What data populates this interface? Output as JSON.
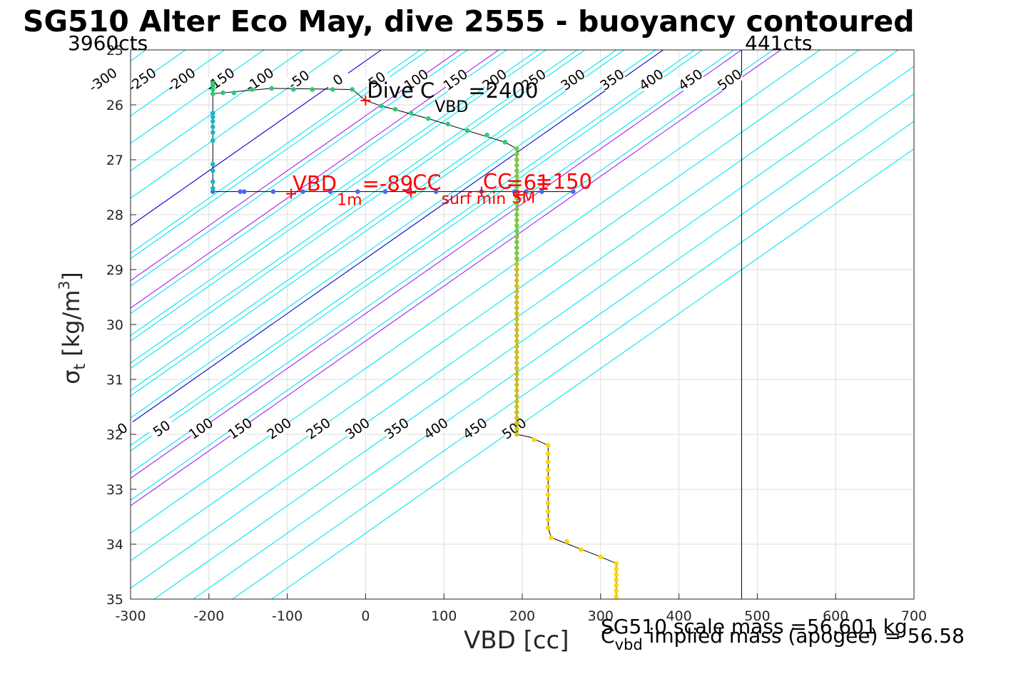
{
  "title": "SG510 Alter Eco May, dive 2555 - buoyancy contoured",
  "counts": {
    "left": "3960cts",
    "right": "441cts"
  },
  "footer": {
    "scale_mass": "SG510 scale mass =56.601 kg",
    "implied_symbol": "C",
    "implied_sub": "vbd",
    "implied_rest": " implied mass (apogee) = 56.58"
  },
  "chart_data": {
    "type": "scatter",
    "title": "SG510 Alter Eco May, dive 2555 - buoyancy contoured",
    "xlabel": "VBD [cc]",
    "ylabel": {
      "sym": "σ",
      "sub": "t",
      "unit": " [kg/m",
      "sup": "3",
      "close": "]"
    },
    "xlim": [
      -300,
      700
    ],
    "ylim": [
      25,
      35
    ],
    "y_reversed": true,
    "grid": true,
    "x_ticks": [
      -300,
      -200,
      -100,
      0,
      100,
      200,
      300,
      400,
      500,
      600,
      700
    ],
    "y_ticks": [
      25,
      26,
      27,
      28,
      29,
      30,
      31,
      32,
      33,
      34,
      35
    ],
    "vertical_line_x": 480,
    "contours": {
      "slope_cc_per_sigma": -100,
      "levels": [
        -300,
        -250,
        -200,
        -150,
        -100,
        -50,
        0,
        50,
        100,
        150,
        200,
        250,
        300,
        350,
        400,
        450,
        500
      ],
      "colors": {
        "default": "#00e5ee",
        "zero": "#0000cc",
        "highlight": "#a020f0"
      },
      "highlight_levels": [
        100,
        150
      ],
      "upper_family": {
        "anchor_x": 0,
        "anchor_y": 25.2
      },
      "lower_family": {
        "anchor_x": -300,
        "anchor_y": 31.8
      },
      "upper_labels": [
        {
          "level": -300,
          "text": "-300"
        },
        {
          "level": -250,
          "text": "-250"
        },
        {
          "level": -200,
          "text": "-200"
        },
        {
          "level": -150,
          "text": "-150"
        },
        {
          "level": -100,
          "text": "-100"
        },
        {
          "level": -50,
          "text": "-50"
        },
        {
          "level": 0,
          "text": "0"
        },
        {
          "level": 50,
          "text": "50"
        },
        {
          "level": 100,
          "text": "100"
        },
        {
          "level": 150,
          "text": "150"
        },
        {
          "level": 200,
          "text": "200"
        },
        {
          "level": 250,
          "text": "250"
        },
        {
          "level": 300,
          "text": "300"
        },
        {
          "level": 350,
          "text": "350"
        },
        {
          "level": 400,
          "text": "400"
        },
        {
          "level": 450,
          "text": "450"
        },
        {
          "level": 500,
          "text": "500"
        }
      ],
      "lower_labels": [
        {
          "level": 0,
          "text": "0"
        },
        {
          "level": 50,
          "text": "50"
        },
        {
          "level": 100,
          "text": "100"
        },
        {
          "level": 150,
          "text": "150"
        },
        {
          "level": 200,
          "text": "200"
        },
        {
          "level": 250,
          "text": "250"
        },
        {
          "level": 300,
          "text": "300"
        },
        {
          "level": 350,
          "text": "350"
        },
        {
          "level": 400,
          "text": "400"
        },
        {
          "level": 450,
          "text": "450"
        },
        {
          "level": 500,
          "text": "500"
        }
      ]
    },
    "series": [
      {
        "color": "#4169ff",
        "points": [
          [
            265,
            27.58
          ],
          [
            225,
            27.58
          ],
          [
            205,
            27.58
          ],
          [
            190,
            27.58
          ],
          [
            148,
            27.58
          ],
          [
            90,
            27.58
          ],
          [
            55,
            27.58
          ],
          [
            25,
            27.58
          ],
          [
            -10,
            27.58
          ],
          [
            -45,
            27.58
          ],
          [
            -80,
            27.58
          ],
          [
            -118,
            27.58
          ],
          [
            -155,
            27.58
          ],
          [
            -160,
            27.58
          ],
          [
            -195,
            27.58
          ]
        ]
      },
      {
        "color": "#1ab8c4",
        "points": [
          [
            -195,
            27.52
          ],
          [
            -195,
            27.4
          ],
          [
            -195,
            27.2
          ],
          [
            -195,
            27.08
          ],
          [
            -195,
            26.65
          ],
          [
            -195,
            26.5
          ],
          [
            -195,
            26.4
          ],
          [
            -195,
            26.3
          ],
          [
            -195,
            26.22
          ],
          [
            -195,
            26.15
          ]
        ]
      },
      {
        "color": "#2ec87a",
        "points": [
          [
            -195,
            25.8
          ],
          [
            -195,
            25.72
          ],
          [
            -195,
            25.65
          ],
          [
            -195,
            25.6
          ],
          [
            -182,
            25.78
          ],
          [
            -168,
            25.78
          ],
          [
            -145,
            25.72
          ],
          [
            -120,
            25.7
          ],
          [
            -92,
            25.72
          ],
          [
            -68,
            25.72
          ],
          [
            -42,
            25.72
          ],
          [
            -17,
            25.72
          ],
          [
            20,
            26.02
          ],
          [
            38,
            26.08
          ],
          [
            58,
            26.15
          ],
          [
            80,
            26.25
          ],
          [
            105,
            26.35
          ],
          [
            130,
            26.47
          ],
          [
            155,
            26.55
          ],
          [
            178,
            26.68
          ]
        ]
      },
      {
        "color": "#7ccc3a",
        "points": [
          [
            193,
            26.8
          ],
          [
            193,
            26.9
          ],
          [
            193,
            27.0
          ],
          [
            193,
            27.1
          ],
          [
            193,
            27.2
          ],
          [
            193,
            27.3
          ],
          [
            193,
            27.4
          ],
          [
            193,
            27.5
          ],
          [
            193,
            27.7
          ],
          [
            193,
            27.8
          ],
          [
            193,
            27.9
          ],
          [
            193,
            28.0
          ],
          [
            193,
            28.1
          ],
          [
            193,
            28.2
          ],
          [
            193,
            28.3
          ],
          [
            193,
            28.4
          ],
          [
            193,
            28.5
          ],
          [
            193,
            28.6
          ],
          [
            193,
            28.7
          ],
          [
            193,
            28.8
          ]
        ]
      },
      {
        "color": "#cfc21a",
        "points": [
          [
            193,
            28.9
          ],
          [
            193,
            29.0
          ],
          [
            193,
            29.1
          ],
          [
            193,
            29.2
          ],
          [
            193,
            29.3
          ],
          [
            193,
            29.4
          ],
          [
            193,
            29.5
          ],
          [
            193,
            29.6
          ],
          [
            193,
            29.7
          ],
          [
            193,
            29.8
          ],
          [
            193,
            29.9
          ],
          [
            193,
            30.0
          ],
          [
            193,
            30.1
          ],
          [
            193,
            30.2
          ],
          [
            193,
            30.3
          ],
          [
            193,
            30.4
          ],
          [
            193,
            30.5
          ],
          [
            193,
            30.6
          ],
          [
            193,
            30.7
          ],
          [
            193,
            30.8
          ],
          [
            193,
            30.9
          ],
          [
            193,
            31.0
          ],
          [
            193,
            31.1
          ],
          [
            193,
            31.2
          ],
          [
            193,
            31.3
          ],
          [
            193,
            31.4
          ],
          [
            193,
            31.5
          ],
          [
            193,
            31.6
          ],
          [
            193,
            31.7
          ],
          [
            193,
            31.8
          ],
          [
            193,
            31.9
          ],
          [
            193,
            32.0
          ]
        ]
      },
      {
        "color": "#ffd700",
        "points": [
          [
            215,
            32.1
          ],
          [
            233,
            32.2
          ],
          [
            233,
            32.35
          ],
          [
            233,
            32.5
          ],
          [
            233,
            32.65
          ],
          [
            233,
            32.8
          ],
          [
            233,
            32.95
          ],
          [
            233,
            33.1
          ],
          [
            233,
            33.25
          ],
          [
            233,
            33.4
          ],
          [
            233,
            33.55
          ],
          [
            233,
            33.7
          ],
          [
            237,
            33.88
          ],
          [
            257,
            33.95
          ],
          [
            275,
            34.1
          ],
          [
            300,
            34.23
          ],
          [
            320,
            34.35
          ],
          [
            320,
            34.45
          ],
          [
            320,
            34.55
          ],
          [
            320,
            34.65
          ],
          [
            320,
            34.75
          ],
          [
            320,
            34.85
          ],
          [
            320,
            34.95
          ]
        ]
      }
    ],
    "profile_line": [
      [
        265,
        27.58
      ],
      [
        -195,
        27.58
      ],
      [
        -195,
        26.1
      ],
      [
        -195,
        25.6
      ],
      [
        -195,
        25.8
      ],
      [
        -182,
        25.78
      ],
      [
        -120,
        25.7
      ],
      [
        -17,
        25.72
      ],
      [
        0,
        25.92
      ],
      [
        20,
        26.02
      ],
      [
        80,
        26.25
      ],
      [
        130,
        26.47
      ],
      [
        178,
        26.68
      ],
      [
        193,
        26.8
      ],
      [
        193,
        32.0
      ],
      [
        210,
        32.05
      ],
      [
        233,
        32.2
      ],
      [
        233,
        33.7
      ],
      [
        237,
        33.88
      ],
      [
        300,
        34.23
      ],
      [
        320,
        34.35
      ],
      [
        320,
        35
      ]
    ],
    "markers": [
      {
        "x": 0,
        "y": 25.92,
        "label_main": "Dive C",
        "label_sub": "VBD",
        "label_rest": "=2400",
        "color": "#000000",
        "marker_color": "#ff0000"
      },
      {
        "x": -95,
        "y": 27.62,
        "label_main": "VBD",
        "label_sub": "1m",
        "label_rest": "=-89",
        "color": "#ff0000",
        "marker_color": "#ff0000"
      },
      {
        "x": 58,
        "y": 27.6,
        "label_main": "CC",
        "label_sub": "surf min",
        "label_rest": "=61",
        "color": "#ff0000",
        "marker_color": "#ff0000"
      },
      {
        "x": 148,
        "y": 27.58,
        "label_main": "CC",
        "label_sub": "SM",
        "label_rest": "=150",
        "color": "#ff0000",
        "marker_color": "#ff0000"
      },
      {
        "x": 195,
        "y": 27.64,
        "label_main": "",
        "label_sub": "",
        "label_rest": "",
        "color": "#ff0000",
        "marker_color": "#ff0000"
      }
    ]
  }
}
